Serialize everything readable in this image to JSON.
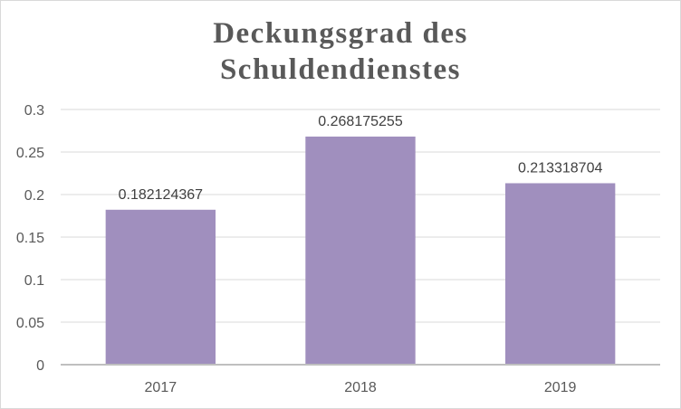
{
  "chart_data": {
    "type": "bar",
    "title_lines": [
      "Deckungsgrad des",
      "Schuldendienstes"
    ],
    "categories": [
      "2017",
      "2018",
      "2019"
    ],
    "values": [
      0.182124367,
      0.268175255,
      0.213318704
    ],
    "data_labels": [
      "0.182124367",
      "0.268175255",
      "0.213318704"
    ],
    "ylim": [
      0,
      0.3
    ],
    "yticks": [
      0,
      0.05,
      0.1,
      0.15,
      0.2,
      0.25,
      0.3
    ],
    "ytick_labels": [
      "0",
      "0.05",
      "0.1",
      "0.15",
      "0.2",
      "0.25",
      "0.3"
    ],
    "grid": true,
    "bar_color": "#a08fbe",
    "gridline_color": "#d9d9d9",
    "axis_color": "#bfbfbf"
  }
}
